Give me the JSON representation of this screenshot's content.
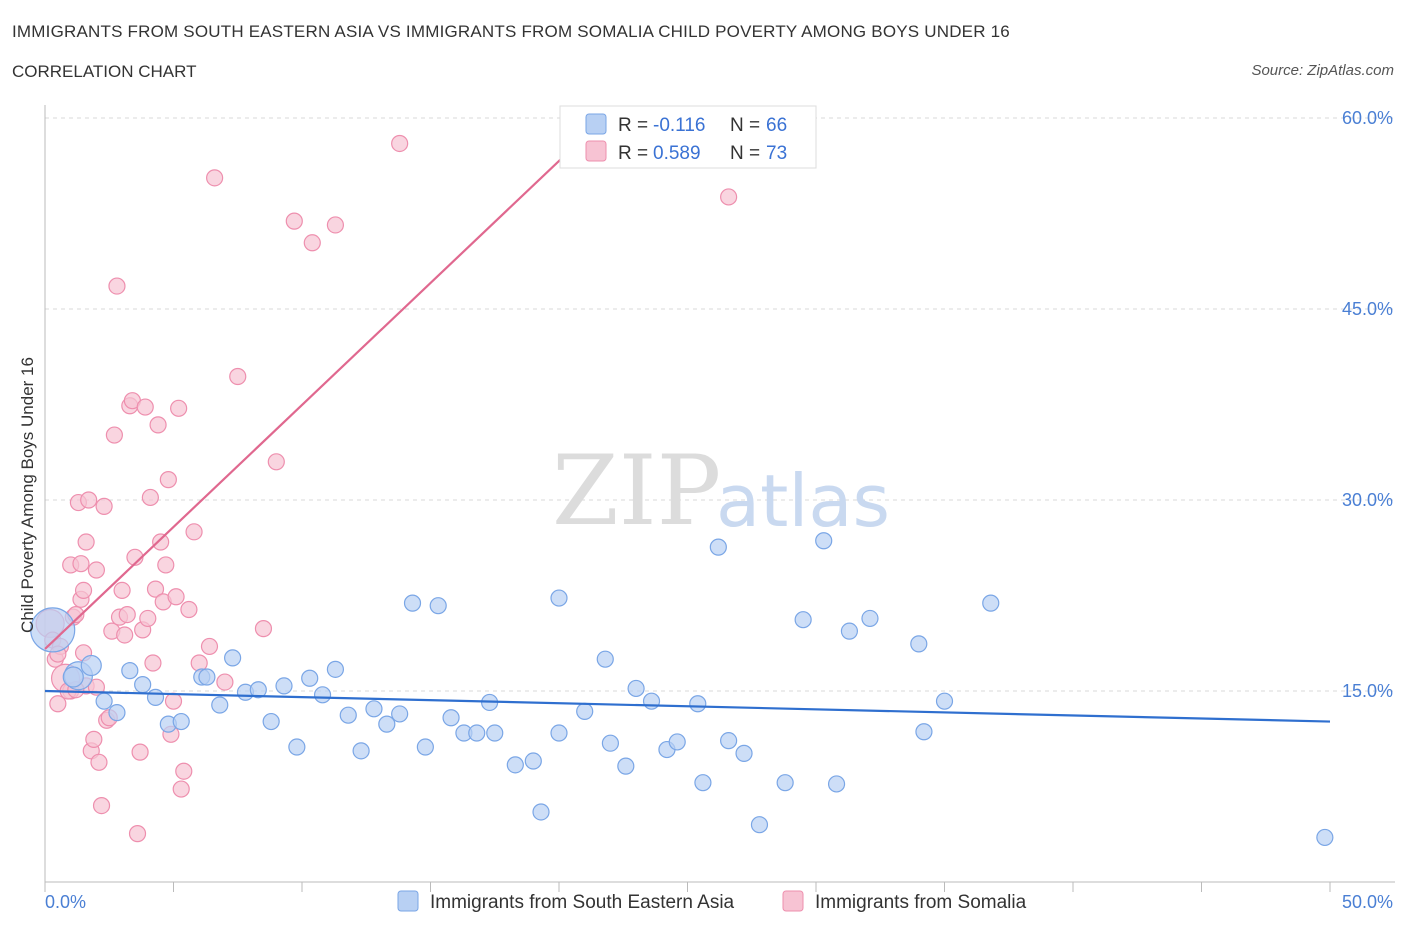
{
  "header": {
    "title": "IMMIGRANTS FROM SOUTH EASTERN ASIA VS IMMIGRANTS FROM SOMALIA CHILD POVERTY AMONG BOYS UNDER 16",
    "subtitle": "CORRELATION CHART",
    "source": "Source: ZipAtlas.com"
  },
  "watermark": {
    "zip": "ZIP",
    "atlas": "atlas"
  },
  "legend": {
    "blue": {
      "r_label": "R = ",
      "r_value": "-0.116",
      "n_label": "N = ",
      "n_value": "66"
    },
    "pink": {
      "r_label": "R = ",
      "r_value": "0.589",
      "n_label": "N = ",
      "n_value": "73"
    }
  },
  "colors": {
    "blue_fill": "#b8d0f3",
    "blue_stroke": "#7aa6e6",
    "blue_line": "#2f6fcf",
    "pink_fill": "#f7c3d3",
    "pink_stroke": "#ee8fae",
    "pink_line": "#e0688f",
    "grid": "#d8d8d8",
    "axis": "#bbbbbb",
    "tick_text": "#4a7fd4"
  },
  "chart_data": {
    "type": "scatter",
    "title": "IMMIGRANTS FROM SOUTH EASTERN ASIA VS IMMIGRANTS FROM SOMALIA CHILD POVERTY AMONG BOYS UNDER 16",
    "xlabel": "",
    "ylabel": "Child Poverty Among Boys Under 16",
    "xlim": [
      0,
      50
    ],
    "ylim": [
      0,
      60
    ],
    "x_tick_labels": [
      "0.0%",
      "50.0%"
    ],
    "y_ticks": [
      15,
      30,
      45,
      60
    ],
    "y_tick_labels": [
      "15.0%",
      "30.0%",
      "45.0%",
      "60.0%"
    ],
    "grid": true,
    "series": [
      {
        "name": "Immigrants from South Eastern Asia",
        "color": "#b8d0f3",
        "trend": {
          "x": [
            0,
            50
          ],
          "y": [
            15.0,
            12.6
          ]
        },
        "points": [
          [
            0.3,
            19.8,
            22
          ],
          [
            1.3,
            16.2,
            14
          ],
          [
            1.8,
            17.0,
            10
          ],
          [
            2.3,
            14.2,
            8
          ],
          [
            2.8,
            13.3,
            8
          ],
          [
            3.3,
            16.6,
            8
          ],
          [
            3.8,
            15.5,
            8
          ],
          [
            4.3,
            14.5,
            8
          ],
          [
            4.8,
            12.4,
            8
          ],
          [
            5.3,
            12.6,
            8
          ],
          [
            6.1,
            16.1,
            8
          ],
          [
            6.3,
            16.1,
            8
          ],
          [
            6.8,
            13.9,
            8
          ],
          [
            7.3,
            17.6,
            8
          ],
          [
            7.8,
            14.9,
            8
          ],
          [
            8.3,
            15.1,
            8
          ],
          [
            8.8,
            12.6,
            8
          ],
          [
            9.3,
            15.4,
            8
          ],
          [
            9.8,
            10.6,
            8
          ],
          [
            10.3,
            16.0,
            8
          ],
          [
            10.8,
            14.7,
            8
          ],
          [
            11.3,
            16.7,
            8
          ],
          [
            11.8,
            13.1,
            8
          ],
          [
            12.3,
            10.3,
            8
          ],
          [
            12.8,
            13.6,
            8
          ],
          [
            13.3,
            12.4,
            8
          ],
          [
            13.8,
            13.2,
            8
          ],
          [
            14.3,
            21.9,
            8
          ],
          [
            14.8,
            10.6,
            8
          ],
          [
            15.3,
            21.7,
            8
          ],
          [
            15.8,
            12.9,
            8
          ],
          [
            16.3,
            11.7,
            8
          ],
          [
            16.8,
            11.7,
            8
          ],
          [
            17.3,
            14.1,
            8
          ],
          [
            17.5,
            11.7,
            8
          ],
          [
            18.3,
            9.2,
            8
          ],
          [
            19.0,
            9.5,
            8
          ],
          [
            19.3,
            5.5,
            8
          ],
          [
            20.0,
            11.7,
            8
          ],
          [
            20.0,
            22.3,
            8
          ],
          [
            21.0,
            13.4,
            8
          ],
          [
            21.8,
            17.5,
            8
          ],
          [
            22.0,
            10.9,
            8
          ],
          [
            22.6,
            9.1,
            8
          ],
          [
            23.0,
            15.2,
            8
          ],
          [
            23.6,
            14.2,
            8
          ],
          [
            24.2,
            10.4,
            8
          ],
          [
            24.6,
            11.0,
            8
          ],
          [
            25.4,
            14.0,
            8
          ],
          [
            25.6,
            7.8,
            8
          ],
          [
            26.2,
            26.3,
            8
          ],
          [
            26.6,
            11.1,
            8
          ],
          [
            27.2,
            10.1,
            8
          ],
          [
            27.8,
            4.5,
            8
          ],
          [
            28.8,
            7.8,
            8
          ],
          [
            29.5,
            20.6,
            8
          ],
          [
            30.3,
            26.8,
            8
          ],
          [
            30.8,
            7.7,
            8
          ],
          [
            31.3,
            19.7,
            8
          ],
          [
            32.1,
            20.7,
            8
          ],
          [
            34.0,
            18.7,
            8
          ],
          [
            34.2,
            11.8,
            8
          ],
          [
            35.0,
            14.2,
            8
          ],
          [
            36.8,
            21.9,
            8
          ],
          [
            49.8,
            3.5,
            8
          ],
          [
            1.1,
            16.1,
            10
          ]
        ]
      },
      {
        "name": "Immigrants from Somalia",
        "color": "#f7c3d3",
        "trend": {
          "x": [
            0,
            21.5
          ],
          "y": [
            18.3,
            59.5
          ]
        },
        "points": [
          [
            0.2,
            20.3,
            14
          ],
          [
            0.3,
            19.0,
            8
          ],
          [
            0.4,
            17.5,
            8
          ],
          [
            0.5,
            14.0,
            8
          ],
          [
            0.6,
            18.5,
            8
          ],
          [
            0.8,
            16.0,
            14
          ],
          [
            1.0,
            24.9,
            8
          ],
          [
            1.0,
            15.0,
            8
          ],
          [
            1.1,
            20.8,
            8
          ],
          [
            1.2,
            21.0,
            8
          ],
          [
            1.3,
            29.8,
            8
          ],
          [
            1.4,
            22.2,
            8
          ],
          [
            1.4,
            25.0,
            8
          ],
          [
            1.5,
            22.9,
            8
          ],
          [
            1.6,
            26.7,
            8
          ],
          [
            1.6,
            15.4,
            8
          ],
          [
            1.7,
            30.0,
            8
          ],
          [
            1.8,
            10.3,
            8
          ],
          [
            1.9,
            11.2,
            8
          ],
          [
            2.0,
            24.5,
            8
          ],
          [
            2.1,
            9.4,
            8
          ],
          [
            2.2,
            6.0,
            8
          ],
          [
            2.3,
            29.5,
            8
          ],
          [
            2.4,
            12.7,
            8
          ],
          [
            2.5,
            12.9,
            8
          ],
          [
            2.6,
            19.7,
            8
          ],
          [
            2.7,
            35.1,
            8
          ],
          [
            2.8,
            46.8,
            8
          ],
          [
            2.9,
            20.8,
            8
          ],
          [
            3.0,
            22.9,
            8
          ],
          [
            3.1,
            19.4,
            8
          ],
          [
            3.2,
            21.0,
            8
          ],
          [
            3.3,
            37.4,
            8
          ],
          [
            3.4,
            37.8,
            8
          ],
          [
            3.5,
            25.5,
            8
          ],
          [
            3.6,
            3.8,
            8
          ],
          [
            3.7,
            10.2,
            8
          ],
          [
            3.8,
            19.8,
            8
          ],
          [
            3.9,
            37.3,
            8
          ],
          [
            4.0,
            20.7,
            8
          ],
          [
            4.1,
            30.2,
            8
          ],
          [
            4.2,
            17.2,
            8
          ],
          [
            4.3,
            23.0,
            8
          ],
          [
            4.4,
            35.9,
            8
          ],
          [
            4.5,
            26.7,
            8
          ],
          [
            4.6,
            22.0,
            8
          ],
          [
            4.7,
            24.9,
            8
          ],
          [
            4.8,
            31.6,
            8
          ],
          [
            4.9,
            11.6,
            8
          ],
          [
            5.0,
            14.2,
            8
          ],
          [
            5.1,
            22.4,
            8
          ],
          [
            5.2,
            37.2,
            8
          ],
          [
            5.3,
            7.3,
            8
          ],
          [
            5.4,
            8.7,
            8
          ],
          [
            5.6,
            21.4,
            8
          ],
          [
            5.8,
            27.5,
            8
          ],
          [
            6.0,
            17.2,
            8
          ],
          [
            6.4,
            18.5,
            8
          ],
          [
            6.6,
            55.3,
            8
          ],
          [
            7.0,
            15.7,
            8
          ],
          [
            7.5,
            39.7,
            8
          ],
          [
            8.5,
            19.9,
            8
          ],
          [
            9.0,
            33.0,
            8
          ],
          [
            9.7,
            51.9,
            8
          ],
          [
            10.4,
            50.2,
            8
          ],
          [
            11.3,
            51.6,
            8
          ],
          [
            13.8,
            58.0,
            8
          ],
          [
            26.6,
            53.8,
            8
          ],
          [
            0.9,
            15.0,
            8
          ],
          [
            1.2,
            15.1,
            8
          ],
          [
            2.0,
            15.3,
            8
          ],
          [
            0.5,
            17.9,
            8
          ],
          [
            1.5,
            18.0,
            8
          ]
        ]
      }
    ]
  }
}
